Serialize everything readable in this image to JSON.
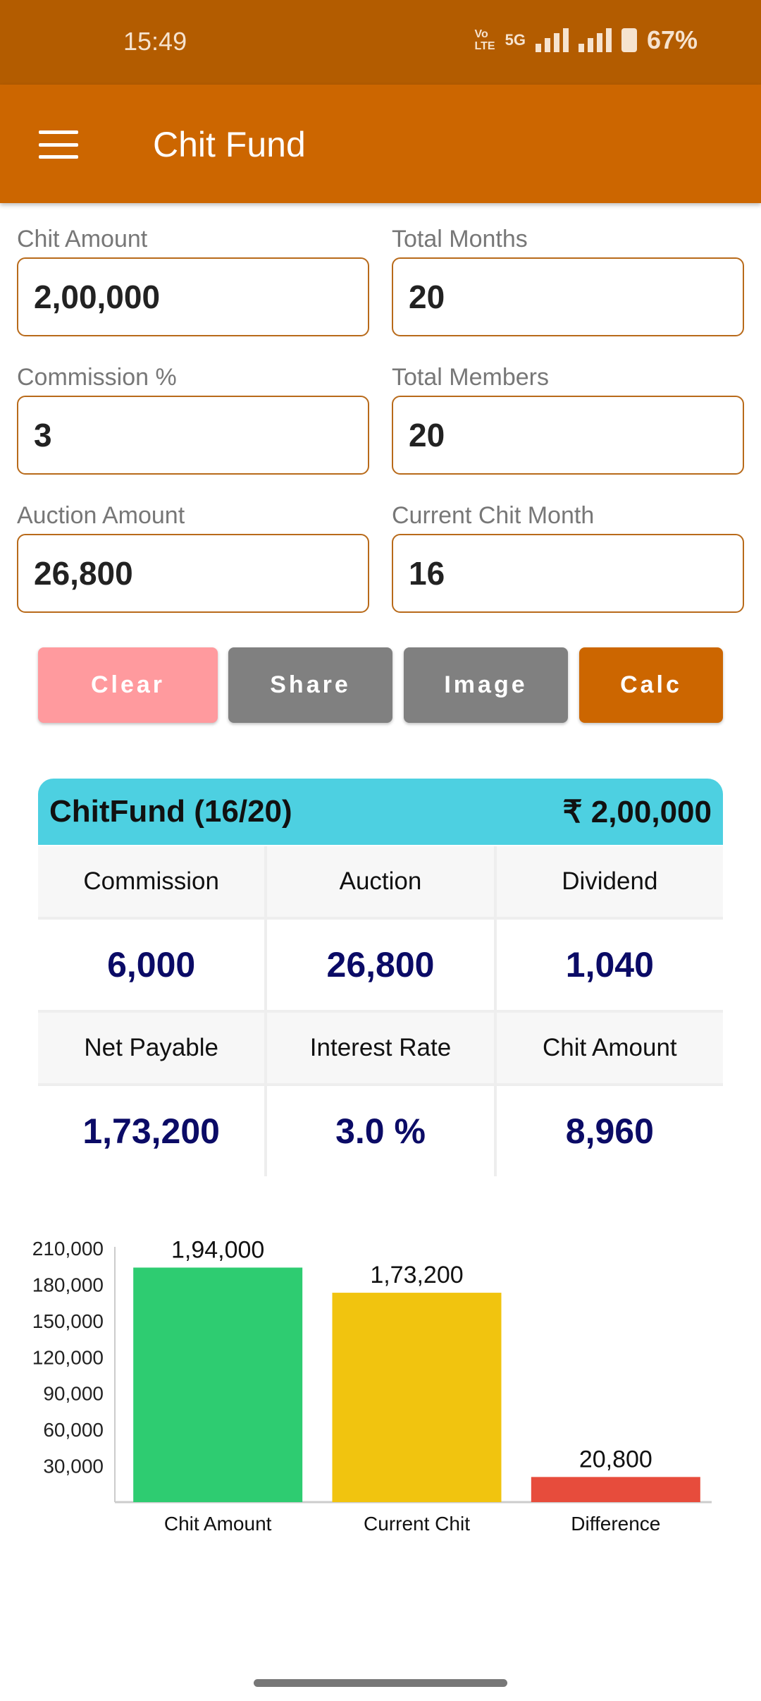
{
  "status_bar": {
    "time": "15:49",
    "network": "5G",
    "battery": "67%"
  },
  "toolbar": {
    "title": "Chit Fund",
    "menu_icon": "hamburger-icon"
  },
  "form": {
    "chit_amount": {
      "label": "Chit Amount",
      "value": "2,00,000"
    },
    "total_months": {
      "label": "Total Months",
      "value": "20"
    },
    "commission": {
      "label": "Commission %",
      "value": "3"
    },
    "total_members": {
      "label": "Total Members",
      "value": "20"
    },
    "auction_amount": {
      "label": "Auction Amount",
      "value": "26,800"
    },
    "current_month": {
      "label": "Current Chit Month",
      "value": "16"
    }
  },
  "buttons": {
    "clear": "Clear",
    "share": "Share",
    "image": "Image",
    "calc": "Calc"
  },
  "colors": {
    "status": "#b35c00",
    "primary": "#cc6600",
    "clear": "#ff9a9e",
    "neutral": "#808080",
    "card_header": "#4dd0e1",
    "value": "#0b0b66"
  },
  "result": {
    "title": "ChitFund (16/20)",
    "total": "₹ 2,00,000",
    "cells": [
      {
        "label": "Commission",
        "value": "6,000"
      },
      {
        "label": "Auction",
        "value": "26,800"
      },
      {
        "label": "Dividend",
        "value": "1,040"
      },
      {
        "label": "Net Payable",
        "value": "1,73,200"
      },
      {
        "label": "Interest Rate",
        "value": "3.0 %"
      },
      {
        "label": "Chit Amount",
        "value": "8,960"
      }
    ]
  },
  "chart_data": {
    "type": "bar",
    "categories": [
      "Chit Amount",
      "Current Chit",
      "Difference"
    ],
    "values": [
      194000,
      173200,
      20800
    ],
    "data_labels": [
      "1,94,000",
      "1,73,200",
      "20,800"
    ],
    "colors": [
      "#2ecc71",
      "#f1c40f",
      "#e74c3c"
    ],
    "ylim": [
      0,
      210000
    ],
    "yticks": [
      "30,000",
      "60,000",
      "90,000",
      "120,000",
      "150,000",
      "180,000",
      "210,000"
    ],
    "grid": false
  }
}
